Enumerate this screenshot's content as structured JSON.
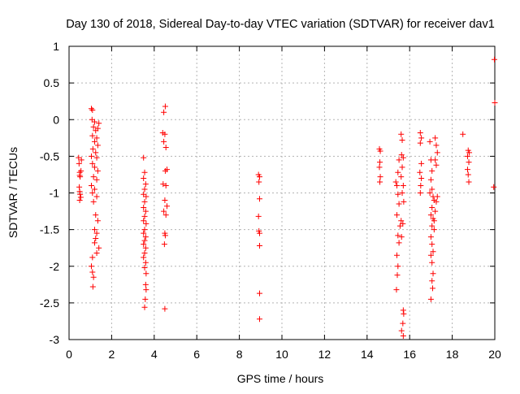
{
  "chart_data": {
    "type": "scatter",
    "title": "Day 130 of 2018, Sidereal Day-to-day VTEC variation (SDTVAR) for receiver dav1",
    "xlabel": "GPS time / hours",
    "ylabel": "SDTVAR / TECUs",
    "xlim": [
      0,
      20
    ],
    "ylim": [
      -3,
      1
    ],
    "xticks": [
      "0",
      "2",
      "4",
      "6",
      "8",
      "10",
      "12",
      "14",
      "16",
      "18",
      "20"
    ],
    "yticks": [
      "1",
      "0.5",
      "0",
      "-0.5",
      "-1",
      "-1.5",
      "-2",
      "-2.5",
      "-3"
    ],
    "grid": true,
    "marker": "+",
    "color": "#ff0000",
    "series": [
      {
        "name": "SDTVAR",
        "points": [
          [
            0.45,
            -0.52
          ],
          [
            0.47,
            -0.6
          ],
          [
            0.5,
            -0.72
          ],
          [
            0.5,
            -0.76
          ],
          [
            0.52,
            -0.78
          ],
          [
            0.48,
            -0.92
          ],
          [
            0.5,
            -0.98
          ],
          [
            0.52,
            -1.02
          ],
          [
            0.55,
            -1.06
          ],
          [
            0.5,
            -1.1
          ],
          [
            0.58,
            -0.55
          ],
          [
            0.56,
            -0.7
          ],
          [
            1.05,
            0.15
          ],
          [
            1.1,
            0.13
          ],
          [
            1.08,
            0.0
          ],
          [
            1.2,
            -0.03
          ],
          [
            1.15,
            -0.1
          ],
          [
            1.25,
            -0.15
          ],
          [
            1.1,
            -0.22
          ],
          [
            1.3,
            -0.25
          ],
          [
            1.2,
            -0.3
          ],
          [
            1.35,
            -0.35
          ],
          [
            1.12,
            -0.4
          ],
          [
            1.25,
            -0.45
          ],
          [
            1.05,
            -0.5
          ],
          [
            1.3,
            -0.52
          ],
          [
            1.1,
            -0.6
          ],
          [
            1.2,
            -0.65
          ],
          [
            1.35,
            -0.7
          ],
          [
            1.15,
            -0.78
          ],
          [
            1.3,
            -0.82
          ],
          [
            1.05,
            -0.9
          ],
          [
            1.2,
            -0.95
          ],
          [
            1.1,
            -1.0
          ],
          [
            1.3,
            -1.05
          ],
          [
            1.15,
            -1.12
          ],
          [
            1.4,
            -0.05
          ],
          [
            1.35,
            -0.12
          ],
          [
            1.25,
            -1.3
          ],
          [
            1.35,
            -1.38
          ],
          [
            1.2,
            -1.5
          ],
          [
            1.3,
            -1.55
          ],
          [
            1.25,
            -1.62
          ],
          [
            1.2,
            -1.68
          ],
          [
            1.4,
            -1.75
          ],
          [
            1.3,
            -1.82
          ],
          [
            1.1,
            -1.88
          ],
          [
            1.05,
            -2.0
          ],
          [
            1.1,
            -2.08
          ],
          [
            1.15,
            -2.15
          ],
          [
            1.12,
            -2.28
          ],
          [
            3.5,
            -0.52
          ],
          [
            3.55,
            -0.72
          ],
          [
            3.5,
            -0.8
          ],
          [
            3.6,
            -0.88
          ],
          [
            3.55,
            -0.95
          ],
          [
            3.5,
            -1.02
          ],
          [
            3.62,
            -1.05
          ],
          [
            3.55,
            -1.12
          ],
          [
            3.5,
            -1.2
          ],
          [
            3.6,
            -1.25
          ],
          [
            3.55,
            -1.32
          ],
          [
            3.5,
            -1.38
          ],
          [
            3.62,
            -1.42
          ],
          [
            3.55,
            -1.5
          ],
          [
            3.5,
            -1.55
          ],
          [
            3.6,
            -1.6
          ],
          [
            3.55,
            -1.65
          ],
          [
            3.5,
            -1.7
          ],
          [
            3.6,
            -1.75
          ],
          [
            3.55,
            -1.82
          ],
          [
            3.5,
            -1.88
          ],
          [
            3.6,
            -1.95
          ],
          [
            3.55,
            -2.02
          ],
          [
            3.62,
            -2.1
          ],
          [
            3.6,
            -2.25
          ],
          [
            3.62,
            -2.32
          ],
          [
            3.58,
            -2.45
          ],
          [
            3.55,
            -2.56
          ],
          [
            4.52,
            0.18
          ],
          [
            4.45,
            0.1
          ],
          [
            4.4,
            -0.18
          ],
          [
            4.5,
            -0.2
          ],
          [
            4.45,
            -0.3
          ],
          [
            4.55,
            -0.38
          ],
          [
            4.6,
            -0.68
          ],
          [
            4.52,
            -0.7
          ],
          [
            4.42,
            -0.88
          ],
          [
            4.55,
            -0.9
          ],
          [
            4.5,
            -1.1
          ],
          [
            4.6,
            -1.18
          ],
          [
            4.45,
            -1.25
          ],
          [
            4.55,
            -1.3
          ],
          [
            4.5,
            -1.55
          ],
          [
            4.52,
            -1.58
          ],
          [
            4.48,
            -1.7
          ],
          [
            4.5,
            -2.58
          ],
          [
            8.9,
            -0.75
          ],
          [
            8.95,
            -0.78
          ],
          [
            8.92,
            -0.85
          ],
          [
            8.95,
            -1.08
          ],
          [
            8.9,
            -1.32
          ],
          [
            8.92,
            -1.52
          ],
          [
            8.95,
            -1.55
          ],
          [
            8.95,
            -1.72
          ],
          [
            8.95,
            -2.37
          ],
          [
            8.95,
            -2.72
          ],
          [
            14.58,
            -0.4
          ],
          [
            14.62,
            -0.43
          ],
          [
            14.6,
            -0.58
          ],
          [
            14.58,
            -0.65
          ],
          [
            14.62,
            -0.78
          ],
          [
            14.6,
            -0.85
          ],
          [
            15.35,
            -0.85
          ],
          [
            15.4,
            -0.9
          ],
          [
            15.45,
            -0.72
          ],
          [
            15.5,
            -0.55
          ],
          [
            15.45,
            -1.02
          ],
          [
            15.5,
            -1.15
          ],
          [
            15.4,
            -1.3
          ],
          [
            15.55,
            -1.45
          ],
          [
            15.45,
            -1.58
          ],
          [
            15.5,
            -1.68
          ],
          [
            15.4,
            -1.85
          ],
          [
            15.45,
            -2.0
          ],
          [
            15.42,
            -2.12
          ],
          [
            15.38,
            -2.32
          ],
          [
            15.6,
            -0.2
          ],
          [
            15.65,
            -0.28
          ],
          [
            15.62,
            -0.48
          ],
          [
            15.7,
            -0.52
          ],
          [
            15.65,
            -0.65
          ],
          [
            15.6,
            -0.78
          ],
          [
            15.7,
            -0.9
          ],
          [
            15.65,
            -1.0
          ],
          [
            15.72,
            -1.12
          ],
          [
            15.6,
            -1.38
          ],
          [
            15.68,
            -1.42
          ],
          [
            15.62,
            -1.6
          ],
          [
            15.7,
            -2.6
          ],
          [
            15.72,
            -2.65
          ],
          [
            15.68,
            -2.78
          ],
          [
            15.62,
            -2.88
          ],
          [
            15.7,
            -2.95
          ],
          [
            16.5,
            -0.18
          ],
          [
            16.55,
            -0.25
          ],
          [
            16.5,
            -0.32
          ],
          [
            16.55,
            -0.6
          ],
          [
            16.48,
            -0.72
          ],
          [
            16.55,
            -0.8
          ],
          [
            16.52,
            -0.9
          ],
          [
            16.5,
            -1.0
          ],
          [
            16.95,
            -0.3
          ],
          [
            17.0,
            -0.55
          ],
          [
            17.05,
            -0.7
          ],
          [
            17.0,
            -0.82
          ],
          [
            17.05,
            -0.95
          ],
          [
            16.95,
            -1.0
          ],
          [
            17.1,
            -1.05
          ],
          [
            17.15,
            -1.1
          ],
          [
            17.05,
            -1.2
          ],
          [
            17.0,
            -1.3
          ],
          [
            17.1,
            -1.35
          ],
          [
            17.05,
            -1.45
          ],
          [
            17.15,
            -1.5
          ],
          [
            17.0,
            -1.6
          ],
          [
            17.05,
            -1.7
          ],
          [
            17.1,
            -1.8
          ],
          [
            17.0,
            -1.85
          ],
          [
            17.05,
            -1.95
          ],
          [
            17.1,
            -2.1
          ],
          [
            17.05,
            -2.2
          ],
          [
            17.08,
            -2.3
          ],
          [
            17.0,
            -2.45
          ],
          [
            17.2,
            -0.25
          ],
          [
            17.25,
            -0.35
          ],
          [
            17.3,
            -0.45
          ],
          [
            17.2,
            -0.55
          ],
          [
            17.25,
            -0.62
          ],
          [
            17.3,
            -1.05
          ],
          [
            17.25,
            -1.12
          ],
          [
            17.2,
            -1.25
          ],
          [
            17.15,
            -1.38
          ],
          [
            18.5,
            -0.2
          ],
          [
            18.75,
            -0.42
          ],
          [
            18.8,
            -0.45
          ],
          [
            18.72,
            -0.5
          ],
          [
            18.78,
            -0.58
          ],
          [
            18.72,
            -0.68
          ],
          [
            18.75,
            -0.75
          ],
          [
            18.78,
            -0.85
          ],
          [
            19.98,
            0.82
          ],
          [
            20.0,
            0.23
          ],
          [
            19.95,
            -0.92
          ]
        ]
      }
    ]
  }
}
